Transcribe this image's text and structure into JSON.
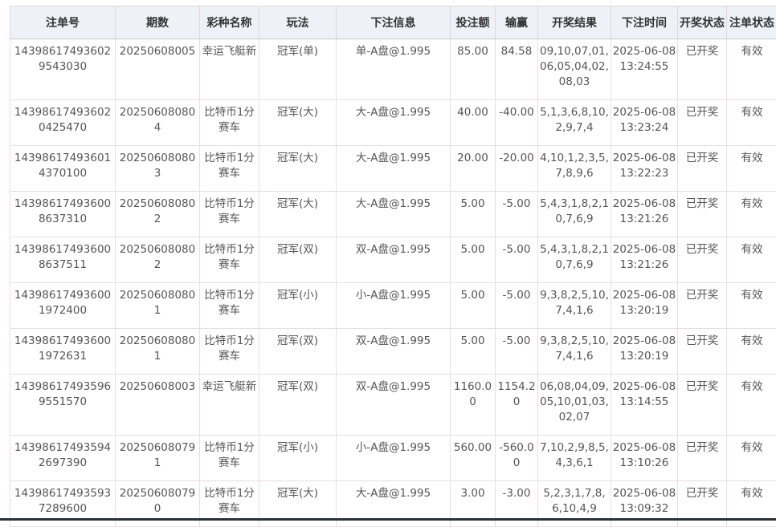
{
  "table": {
    "headers": [
      "注单号",
      "期数",
      "彩种名称",
      "玩法",
      "下注信息",
      "投注额",
      "输赢",
      "开奖结果",
      "下注时间",
      "开奖状态",
      "注单状态"
    ],
    "rows": [
      [
        "143986174936029543030",
        "20250608005",
        "幸运飞艇新",
        "冠军(单)",
        "单-A盘@1.995",
        "85.00",
        "84.58",
        "09,10,07,01,06,05,04,02,08,03",
        "2025-06-08 13:24:55",
        "已开奖",
        "有效"
      ],
      [
        "143986174936020425470",
        "202506080804",
        "比特币1分赛车",
        "冠军(大)",
        "大-A盘@1.995",
        "40.00",
        "-40.00",
        "5,1,3,6,8,10,2,9,7,4",
        "2025-06-08 13:23:24",
        "已开奖",
        "有效"
      ],
      [
        "143986174936014370100",
        "202506080803",
        "比特币1分赛车",
        "冠军(大)",
        "大-A盘@1.995",
        "20.00",
        "-20.00",
        "4,10,1,2,3,5,7,8,9,6",
        "2025-06-08 13:22:23",
        "已开奖",
        "有效"
      ],
      [
        "143986174936008637310",
        "202506080802",
        "比特币1分赛车",
        "冠军(大)",
        "大-A盘@1.995",
        "5.00",
        "-5.00",
        "5,4,3,1,8,2,10,7,6,9",
        "2025-06-08 13:21:26",
        "已开奖",
        "有效"
      ],
      [
        "143986174936008637511",
        "202506080802",
        "比特币1分赛车",
        "冠军(双)",
        "双-A盘@1.995",
        "5.00",
        "-5.00",
        "5,4,3,1,8,2,10,7,6,9",
        "2025-06-08 13:21:26",
        "已开奖",
        "有效"
      ],
      [
        "143986174936001972400",
        "202506080801",
        "比特币1分赛车",
        "冠军(小)",
        "小-A盘@1.995",
        "5.00",
        "-5.00",
        "9,3,8,2,5,10,7,4,1,6",
        "2025-06-08 13:20:19",
        "已开奖",
        "有效"
      ],
      [
        "143986174936001972631",
        "202506080801",
        "比特币1分赛车",
        "冠军(双)",
        "双-A盘@1.995",
        "5.00",
        "-5.00",
        "9,3,8,2,5,10,7,4,1,6",
        "2025-06-08 13:20:19",
        "已开奖",
        "有效"
      ],
      [
        "143986174935969551570",
        "20250608003",
        "幸运飞艇新",
        "冠军(双)",
        "双-A盘@1.995",
        "1160.00",
        "1154.20",
        "06,08,04,09,05,10,01,03,02,07",
        "2025-06-08 13:14:55",
        "已开奖",
        "有效"
      ],
      [
        "143986174935942697390",
        "202506080791",
        "比特币1分赛车",
        "冠军(小)",
        "小-A盘@1.995",
        "560.00",
        "-560.00",
        "7,10,2,9,8,5,4,3,6,1",
        "2025-06-08 13:10:26",
        "已开奖",
        "有效"
      ],
      [
        "143986174935937289600",
        "202506080790",
        "比特币1分赛车",
        "冠军(大)",
        "大-A盘@1.995",
        "3.00",
        "-3.00",
        "5,2,3,1,7,8,6,10,4,9",
        "2025-06-08 13:09:32",
        "已开奖",
        "有效"
      ]
    ]
  }
}
